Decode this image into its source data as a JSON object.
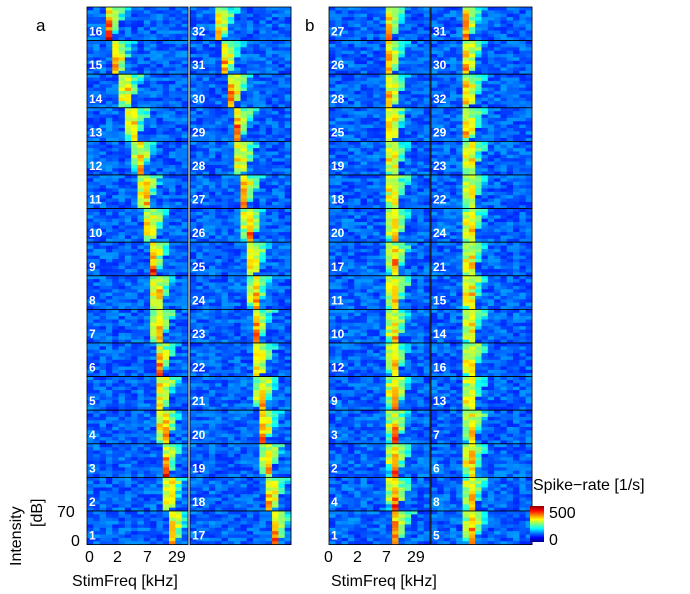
{
  "chart_data": {
    "type": "heatmap",
    "description_kind": "grid of frequency-response maps per recording channel",
    "panels": [
      {
        "label": "a",
        "columns": [
          {
            "channels": [
              16,
              15,
              14,
              13,
              12,
              11,
              10,
              9,
              8,
              7,
              6,
              5,
              4,
              3,
              2,
              1
            ],
            "best_freq_frac": [
              0.22,
              0.3,
              0.38,
              0.45,
              0.52,
              0.57,
              0.62,
              0.66,
              0.69,
              0.7,
              0.72,
              0.74,
              0.76,
              0.78,
              0.81,
              0.85
            ]
          },
          {
            "channels": [
              32,
              31,
              30,
              29,
              28,
              27,
              26,
              25,
              24,
              23,
              22,
              21,
              20,
              19,
              18,
              17
            ],
            "best_freq_frac": [
              0.3,
              0.36,
              0.42,
              0.47,
              0.5,
              0.54,
              0.58,
              0.62,
              0.64,
              0.66,
              0.68,
              0.71,
              0.73,
              0.76,
              0.8,
              0.85
            ]
          }
        ]
      },
      {
        "label": "b",
        "columns": [
          {
            "channels": [
              27,
              26,
              28,
              25,
              19,
              18,
              20,
              17,
              11,
              10,
              12,
              9,
              3,
              2,
              4,
              1
            ],
            "best_freq_frac": [
              0.6,
              0.61,
              0.61,
              0.62,
              0.63,
              0.63,
              0.64,
              0.64,
              0.64,
              0.64,
              0.64,
              0.65,
              0.65,
              0.65,
              0.65,
              0.66
            ]
          },
          {
            "channels": [
              31,
              30,
              32,
              29,
              23,
              22,
              24,
              21,
              15,
              14,
              16,
              13,
              7,
              6,
              8,
              5
            ],
            "best_freq_frac": [
              0.35,
              0.36,
              0.37,
              0.37,
              0.38,
              0.38,
              0.38,
              0.38,
              0.38,
              0.38,
              0.38,
              0.38,
              0.39,
              0.39,
              0.39,
              0.4
            ]
          }
        ]
      }
    ],
    "xlabel": "StimFreq [kHz]",
    "x_ticks": [
      "0",
      "2",
      "7",
      "29"
    ],
    "ylabel": "Intensity\n[dB]",
    "y_ticks": [
      "0",
      "70"
    ],
    "colorbar": {
      "label": "Spike−rate [1/s]",
      "min": "0",
      "max": "500",
      "colormap": "jet"
    }
  },
  "labels": {
    "panel_a": "a",
    "panel_b": "b",
    "xlabel_a": "StimFreq [kHz]",
    "xlabel_b": "StimFreq [kHz]",
    "ylabel_line1": "Intensity",
    "ylabel_line2": "[dB]",
    "y_tick_top": "70",
    "y_tick_bottom": "0",
    "colorbar_title": "Spike−rate [1/s]",
    "colorbar_max": "500",
    "colorbar_min": "0"
  }
}
